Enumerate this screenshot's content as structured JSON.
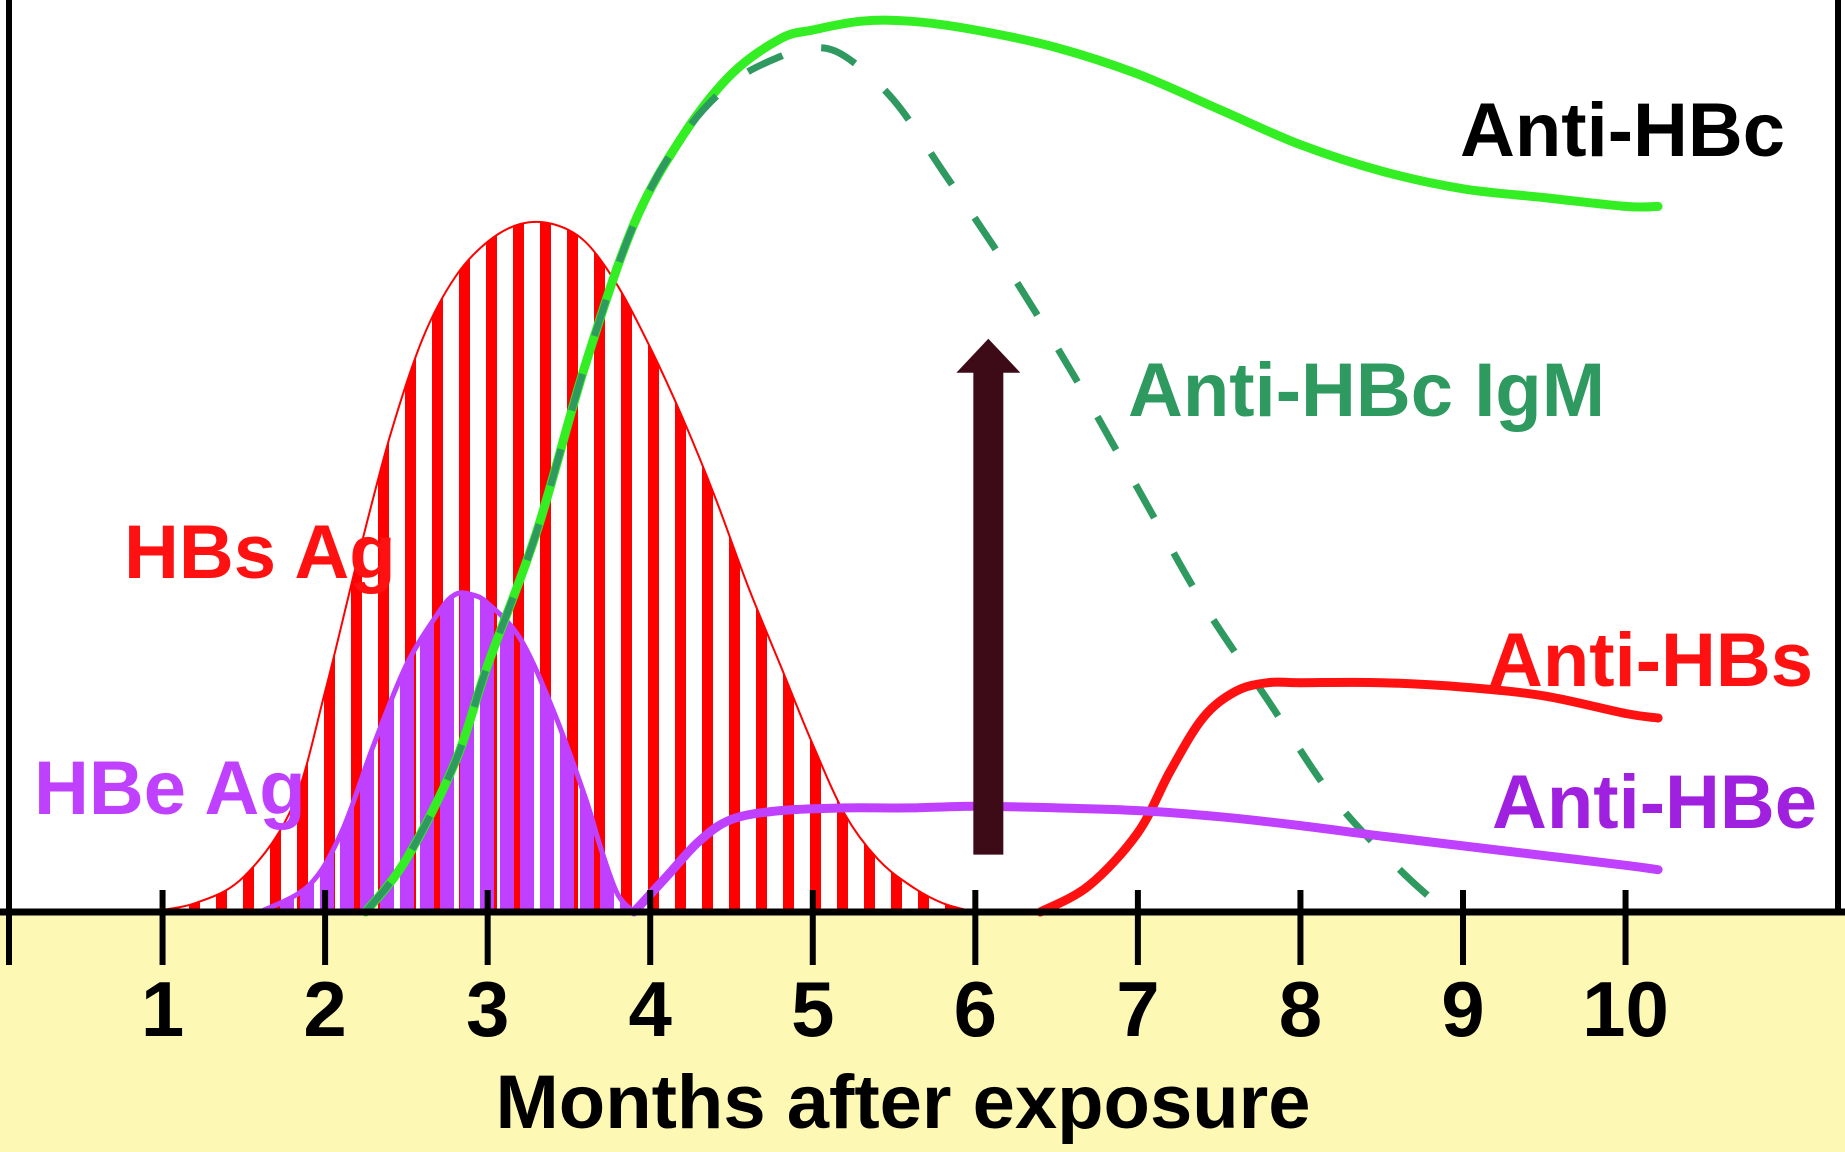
{
  "chart_data": {
    "type": "line",
    "title": "",
    "xlabel": "Months after exposure",
    "ylabel": "",
    "xlim": [
      0,
      11.35
    ],
    "ylim": [
      0,
      100
    ],
    "x_ticks": [
      1,
      2,
      3,
      4,
      5,
      6,
      7,
      8,
      9,
      10
    ],
    "tick_labels": [
      "1",
      "2",
      "3",
      "4",
      "5",
      "6",
      "7",
      "8",
      "9",
      "10"
    ],
    "grid": false,
    "background_colors": {
      "plot": "#ffffff",
      "axis_band": "#fdf9b4"
    },
    "series": [
      {
        "name": "HBs Ag",
        "style": "hatched-area",
        "color": "#ff0000",
        "x": [
          0.9,
          1.2,
          1.5,
          1.8,
          2.0,
          2.2,
          2.4,
          2.6,
          2.8,
          3.0,
          3.2,
          3.4,
          3.6,
          3.8,
          4.0,
          4.2,
          4.4,
          4.6,
          4.8,
          5.0,
          5.2,
          5.4,
          5.6,
          5.8,
          6.0
        ],
        "values": [
          0,
          1,
          4,
          12,
          25,
          40,
          54,
          65,
          72,
          76,
          78,
          78,
          76,
          71,
          64,
          56,
          47,
          37,
          28,
          19,
          11,
          6,
          3,
          1,
          0
        ]
      },
      {
        "name": "HBe Ag",
        "style": "hatched-area",
        "color": "#bf40ff",
        "x": [
          1.6,
          1.9,
          2.1,
          2.3,
          2.5,
          2.7,
          2.8,
          2.9,
          3.0,
          3.2,
          3.4,
          3.6,
          3.7,
          3.8,
          3.9
        ],
        "values": [
          0,
          3,
          9,
          19,
          28,
          34,
          36,
          36,
          35,
          31,
          23,
          13,
          7,
          2,
          0
        ]
      },
      {
        "name": "Anti-HBc",
        "style": "solid",
        "color": "#33ee22",
        "x": [
          2.25,
          2.5,
          2.8,
          3.0,
          3.3,
          3.6,
          3.9,
          4.2,
          4.5,
          4.8,
          5.0,
          5.3,
          5.6,
          6.0,
          6.5,
          7.0,
          7.5,
          8.0,
          8.5,
          9.0,
          9.5,
          10.0,
          10.2
        ],
        "values": [
          0,
          6,
          17,
          28,
          43,
          62,
          78,
          88,
          95,
          99,
          100,
          101,
          101,
          100,
          98,
          95,
          91,
          87,
          84,
          82,
          81,
          80,
          80
        ]
      },
      {
        "name": "Anti-HBc IgM",
        "style": "dashed",
        "color": "#2e9a60",
        "x": [
          2.25,
          2.5,
          2.8,
          3.0,
          3.3,
          3.6,
          3.9,
          4.2,
          4.5,
          4.8,
          5.0,
          5.2,
          5.5,
          5.8,
          6.2,
          6.6,
          7.0,
          7.4,
          7.8,
          8.2,
          8.6,
          8.9
        ],
        "values": [
          0,
          6,
          17,
          28,
          43,
          62,
          78,
          88,
          94,
          97,
          98,
          97,
          92,
          84,
          73,
          61,
          48,
          35,
          24,
          13,
          5,
          0
        ]
      },
      {
        "name": "Anti-HBs",
        "style": "solid",
        "color": "#ff1111",
        "x": [
          6.4,
          6.7,
          7.0,
          7.2,
          7.4,
          7.6,
          7.8,
          8.0,
          8.5,
          9.0,
          9.5,
          10.0,
          10.2
        ],
        "values": [
          0,
          3,
          9,
          16,
          22,
          25,
          26,
          26,
          26,
          25.5,
          24.5,
          22.5,
          22
        ]
      },
      {
        "name": "Anti-HBe",
        "style": "solid",
        "color": "#c040ff",
        "x": [
          3.9,
          4.1,
          4.3,
          4.5,
          4.8,
          5.2,
          5.6,
          6.0,
          6.5,
          7.0,
          7.5,
          8.0,
          8.5,
          9.0,
          9.5,
          10.0,
          10.2
        ],
        "values": [
          0,
          4,
          8,
          10.5,
          11.5,
          11.8,
          11.8,
          12,
          11.8,
          11.5,
          10.8,
          9.8,
          8.6,
          7.5,
          6.4,
          5.3,
          4.8
        ]
      }
    ],
    "annotations": [
      {
        "type": "arrow",
        "color": "#3d0a18",
        "x": 6.08,
        "y_from": 6.5,
        "y_to": 65
      }
    ],
    "series_labels": [
      {
        "text": "Anti-HBc",
        "color": "#000000"
      },
      {
        "text": "Anti-HBc IgM",
        "color": "#2e9a60"
      },
      {
        "text": "HBs Ag",
        "color": "#ff1111"
      },
      {
        "text": "HBe Ag",
        "color": "#c040ff"
      },
      {
        "text": "Anti-HBs",
        "color": "#ff1111"
      },
      {
        "text": "Anti-HBe",
        "color": "#a020e0"
      }
    ]
  }
}
